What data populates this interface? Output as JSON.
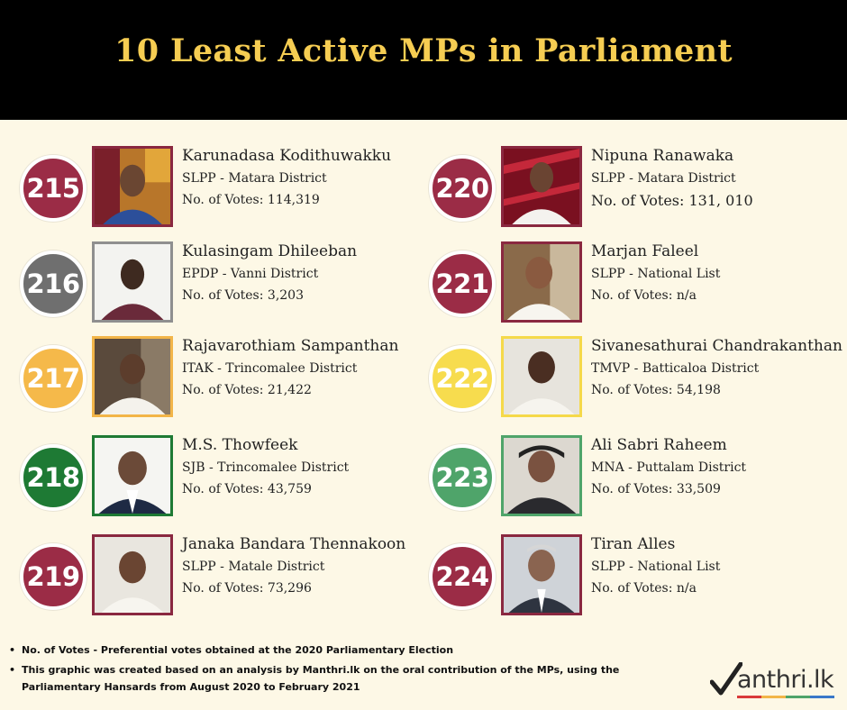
{
  "title": "10 Least Active MPs in Parliament",
  "mps": [
    {
      "rank": "215",
      "name": "Karunadasa Kodithuwakku",
      "party": "SLPP - Matara District",
      "votes": "No. of Votes: 114,319",
      "color": "#9b2c46",
      "photo_border": "#8a2840"
    },
    {
      "rank": "216",
      "name": "Kulasingam Dhileeban",
      "party": "EPDP - Vanni District",
      "votes": "No. of Votes: 3,203",
      "color": "#6f6f6f",
      "photo_border": "#8f8f8f"
    },
    {
      "rank": "217",
      "name": "Rajavarothiam Sampanthan",
      "party": "ITAK - Trincomalee District",
      "votes": "No. of Votes: 21,422",
      "color": "#f5b94a",
      "photo_border": "#f2b548"
    },
    {
      "rank": "218",
      "name": "M.S. Thowfeek",
      "party": "SJB - Trincomalee District",
      "votes": "No. of Votes: 43,759",
      "color": "#1e7a34",
      "photo_border": "#1e7a34"
    },
    {
      "rank": "219",
      "name": "Janaka Bandara Thennakoon",
      "party": "SLPP - Matale District",
      "votes": "No. of Votes: 73,296",
      "color": "#9b2c46",
      "photo_border": "#8a2840"
    },
    {
      "rank": "220",
      "name": "Nipuna Ranawaka",
      "party": "SLPP - Matara District",
      "votes": "No. of Votes: 131, 010",
      "color": "#9b2c46",
      "photo_border": "#8a2840"
    },
    {
      "rank": "221",
      "name": "Marjan Faleel",
      "party": "SLPP - National List",
      "votes": "No. of Votes: n/a",
      "color": "#9b2c46",
      "photo_border": "#8a2840"
    },
    {
      "rank": "222",
      "name": "Sivanesathurai Chandrakanthan",
      "party": "TMVP - Batticaloa District",
      "votes": "No. of Votes: 54,198",
      "color": "#f7dc4e",
      "photo_border": "#f5d94a"
    },
    {
      "rank": "223",
      "name": "Ali Sabri Raheem",
      "party": "MNA - Puttalam District",
      "votes": "No. of Votes: 33,509",
      "color": "#4fa46a",
      "photo_border": "#4fa46a"
    },
    {
      "rank": "224",
      "name": "Tiran Alles",
      "party": "SLPP - National List",
      "votes": "No. of Votes: n/a",
      "color": "#9b2c46",
      "photo_border": "#8a2840"
    }
  ],
  "footnotes": [
    "No. of Votes - Preferential votes obtained at the 2020 Parliamentary Election",
    "This graphic was created based on an analysis by Manthri.lk on the oral contribution of the MPs, using the Parliamentary Hansards from August 2020 to February 2021"
  ],
  "logo": {
    "text": "anthri.lk",
    "checkmark_color": "#222222",
    "stripe_colors": [
      "#d93a3a",
      "#f2b548",
      "#4fa46a",
      "#3a78c9"
    ]
  }
}
